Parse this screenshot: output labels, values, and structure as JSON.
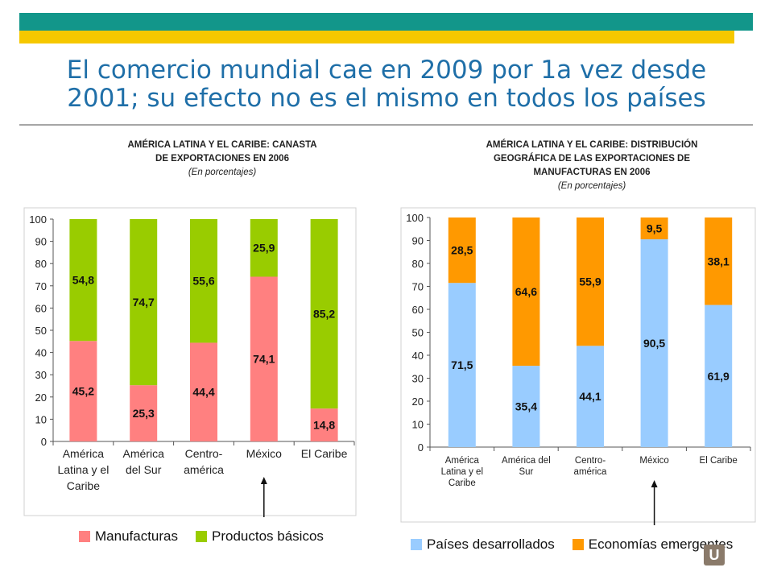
{
  "header": {
    "title_line1": "El comercio mundial cae en 2009 por 1a vez desde",
    "title_line2": "2001; su efecto no es el mismo en todos los países"
  },
  "logo": {
    "letter": "U"
  },
  "colors": {
    "teal": "#12968a",
    "yellow": "#f6c800",
    "manufacturas": "#ff8080",
    "productos": "#99cc00",
    "desarrollados": "#99ccff",
    "emergentes": "#ff9900"
  },
  "chart_data": [
    {
      "type": "bar",
      "stacked": true,
      "title_line1": "AMÉRICA LATINA Y EL CARIBE: CANASTA",
      "title_line2": "DE EXPORTACIONES EN 2006",
      "subtitle": "(En porcentajes)",
      "categories": [
        [
          "América",
          "Latina y el",
          "Caribe"
        ],
        [
          "América",
          "del Sur"
        ],
        [
          "Centro-",
          "américa"
        ],
        [
          "México"
        ],
        [
          "El Caribe"
        ]
      ],
      "series": [
        {
          "name": "Manufacturas",
          "values": [
            45.2,
            25.3,
            44.4,
            74.1,
            14.8
          ],
          "labels": [
            "45,2",
            "25,3",
            "44,4",
            "74,1",
            "14,8"
          ],
          "color": "#ff8080"
        },
        {
          "name": "Productos básicos",
          "values": [
            54.8,
            74.7,
            55.6,
            25.9,
            85.2
          ],
          "labels": [
            "54,8",
            "74,7",
            "55,6",
            "25,9",
            "85,2"
          ],
          "color": "#99cc00"
        }
      ],
      "ylim": [
        0,
        100
      ],
      "yticks": [
        0,
        10,
        20,
        30,
        40,
        50,
        60,
        70,
        80,
        90,
        100
      ],
      "arrow_category": "México"
    },
    {
      "type": "bar",
      "stacked": true,
      "title_line1": "AMÉRICA LATINA Y EL CARIBE: DISTRIBUCIÓN",
      "title_line2": "GEOGRÁFICA DE LAS EXPORTACIONES DE",
      "title_line3": "MANUFACTURAS EN 2006",
      "subtitle": "(En porcentajes)",
      "categories": [
        [
          "América",
          "Latina y el",
          "Caribe"
        ],
        [
          "América del",
          "Sur"
        ],
        [
          "Centro-",
          "américa"
        ],
        [
          "México"
        ],
        [
          "El Caribe"
        ]
      ],
      "series": [
        {
          "name": "Países desarrollados",
          "values": [
            71.5,
            35.4,
            44.1,
            90.5,
            61.9
          ],
          "labels": [
            "71,5",
            "35,4",
            "44,1",
            "90,5",
            "61,9"
          ],
          "color": "#99ccff"
        },
        {
          "name": "Economías emergentes",
          "values": [
            28.5,
            64.6,
            55.9,
            9.5,
            38.1
          ],
          "labels": [
            "28,5",
            "64,6",
            "55,9",
            "9,5",
            "38,1"
          ],
          "color": "#ff9900"
        }
      ],
      "ylim": [
        0,
        100
      ],
      "yticks": [
        0,
        10,
        20,
        30,
        40,
        50,
        60,
        70,
        80,
        90,
        100
      ],
      "arrow_category": "México"
    }
  ]
}
